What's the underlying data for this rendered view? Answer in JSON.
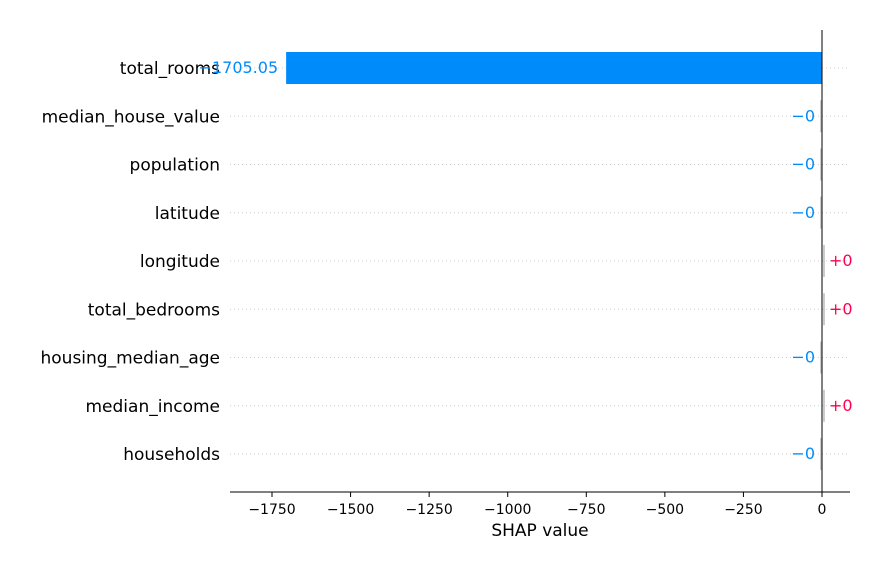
{
  "chart_data": {
    "type": "bar",
    "orientation": "horizontal",
    "title": "",
    "xlabel": "SHAP value",
    "ylabel": "",
    "xlim": [
      -1880,
      90
    ],
    "xticks": [
      -1750,
      -1500,
      -1250,
      -1000,
      -750,
      -500,
      -250,
      0
    ],
    "xtick_labels": [
      "−1750",
      "−1500",
      "−1250",
      "−1000",
      "−750",
      "−500",
      "−250",
      "0"
    ],
    "categories": [
      "total_rooms",
      "median_house_value",
      "population",
      "latitude",
      "longitude",
      "total_bedrooms",
      "housing_median_age",
      "median_income",
      "households"
    ],
    "values": [
      -1705.05,
      -0.0,
      -0.0,
      -0.0,
      0.0,
      0.0,
      -0.0,
      0.0,
      -0.0
    ],
    "value_labels": [
      "−1705.05",
      "−0",
      "−0",
      "−0",
      "+0",
      "+0",
      "−0",
      "+0",
      "−0"
    ],
    "grid": "dotted horizontal row guides",
    "colors": {
      "negative": "#008bfb",
      "positive": "#ff0051",
      "zero_line": "#000000",
      "guide": "#cccccc",
      "small_bar": "#cccccc"
    }
  }
}
